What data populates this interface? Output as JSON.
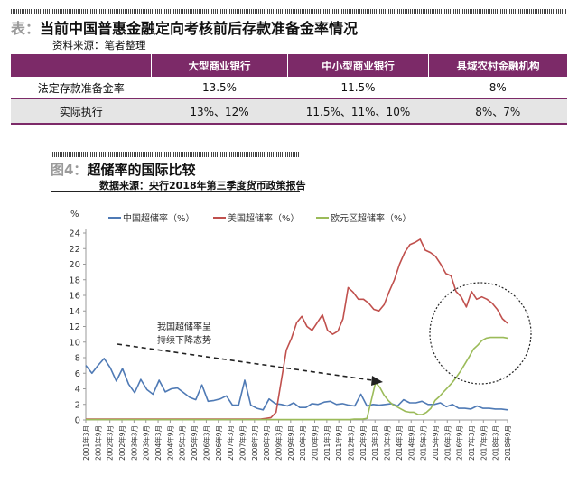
{
  "table": {
    "label": "表：",
    "title": "当前中国普惠金融定向考核前后存款准备金率情况",
    "source": "资料来源：笔者整理",
    "headers": [
      "",
      "大型商业银行",
      "中小型商业银行",
      "县域农村金融机构"
    ],
    "rows": [
      [
        "法定存款准备金率",
        "13.5%",
        "11.5%",
        "8%"
      ],
      [
        "实际执行",
        "13%、12%",
        "11.5%、11%、10%",
        "8%、7%"
      ]
    ],
    "header_color": "#7c2a68"
  },
  "figure": {
    "label": "图4：",
    "title": "超储率的国际比较",
    "source": "数据来源：央行2018年第三季度货币政策报告"
  },
  "chart_data": {
    "type": "line",
    "y_unit": "%",
    "ylim": [
      0,
      24
    ],
    "y_ticks": [
      0,
      2,
      4,
      6,
      8,
      10,
      12,
      14,
      16,
      18,
      20,
      22,
      24
    ],
    "x_ticks": [
      "2001年3月",
      "2001年9月",
      "2002年3月",
      "2002年9月",
      "2003年3月",
      "2003年9月",
      "2004年3月",
      "2004年9月",
      "2005年3月",
      "2005年9月",
      "2006年3月",
      "2006年9月",
      "2007年3月",
      "2007年9月",
      "2008年3月",
      "2008年9月",
      "2009年3月",
      "2009年9月",
      "2010年3月",
      "2010年9月",
      "2011年3月",
      "2011年9月",
      "2012年3月",
      "2012年9月",
      "2013年3月",
      "2013年9月",
      "2014年3月",
      "2014年9月",
      "2015年3月",
      "2015年9月",
      "2016年3月",
      "2016年9月",
      "2017年3月",
      "2017年9月",
      "2018年3月",
      "2018年9月"
    ],
    "grid": false,
    "legend_position": "top",
    "annotation": [
      "我国超储率呈",
      "持续下降态势"
    ],
    "series": [
      {
        "name": "中国超储率（%）",
        "color": "#4f7ab5",
        "values": [
          7.0,
          6.0,
          7.0,
          7.9,
          6.7,
          5.0,
          6.6,
          4.6,
          3.5,
          5.2,
          3.9,
          3.3,
          5.1,
          3.6,
          4.0,
          4.1,
          3.5,
          2.9,
          2.6,
          4.5,
          2.4,
          2.5,
          2.7,
          3.1,
          1.9,
          1.9,
          5.1,
          1.9,
          1.5,
          1.3,
          2.7,
          2.1,
          2.0,
          1.8,
          2.2,
          1.6,
          1.6,
          2.1,
          2.0,
          2.3,
          2.4,
          2.0,
          2.1,
          1.9,
          1.8,
          3.3,
          1.8,
          2.0,
          1.9,
          2.0,
          2.1,
          1.8,
          2.6,
          2.2,
          2.2,
          2.4,
          2.0,
          2.0,
          2.2,
          1.7,
          2.0,
          1.5,
          1.5,
          1.4,
          1.8,
          1.5,
          1.5,
          1.4,
          1.4,
          1.3
        ]
      },
      {
        "name": "美国超储率（%）",
        "color": "#c0504d",
        "values": [
          0.1,
          0.1,
          0.1,
          0.1,
          0.1,
          0.1,
          0.1,
          0.1,
          0.1,
          0.1,
          0.1,
          0.1,
          0.1,
          0.1,
          0.1,
          0.1,
          0.1,
          0.1,
          0.1,
          0.1,
          0.1,
          0.1,
          0.1,
          0.1,
          0.1,
          0.1,
          0.1,
          0.1,
          0.1,
          0.1,
          0.1,
          0.1,
          0.1,
          0.1,
          0.1,
          0.2,
          0.3,
          1.0,
          5.0,
          9.0,
          10.5,
          12.5,
          13.3,
          12.0,
          11.5,
          12.5,
          13.5,
          11.5,
          11.0,
          11.4,
          13.0,
          17.0,
          16.4,
          15.5,
          15.5,
          15.0,
          14.2,
          14.0,
          14.8,
          16.5,
          18.0,
          20.0,
          21.5,
          22.5,
          22.8,
          23.2,
          21.8,
          21.5,
          21.0,
          20.0,
          18.8,
          18.5,
          16.5,
          15.8,
          14.5,
          16.5,
          15.5,
          15.8,
          15.5,
          15.0,
          14.2,
          13.0,
          12.4
        ]
      },
      {
        "name": "欧元区超储率（%）",
        "color": "#9bbb59",
        "values": [
          0.05,
          0.05,
          0.05,
          0.05,
          0.05,
          0.05,
          0.05,
          0.05,
          0.05,
          0.05,
          0.05,
          0.05,
          0.05,
          0.05,
          0.05,
          0.05,
          0.05,
          0.05,
          0.05,
          0.05,
          0.05,
          0.05,
          0.05,
          0.05,
          0.05,
          0.05,
          0.05,
          0.05,
          0.05,
          0.05,
          0.05,
          0.05,
          0.05,
          0.05,
          0.05,
          0.05,
          0.05,
          0.05,
          0.05,
          0.05,
          0.05,
          0.05,
          0.05,
          0.05,
          0.05,
          0.05,
          0.05,
          0.05,
          0.05,
          0.05,
          0.05,
          0.05,
          0.05,
          0.05,
          0.05,
          0.05,
          0.05,
          0.05,
          0.05,
          0.05,
          0.05,
          0.05,
          0.05,
          0.1,
          0.1,
          0.1,
          0.2,
          2.5,
          4.8,
          4.2,
          3.2,
          2.5,
          2.0,
          1.7,
          1.4,
          1.1,
          1.0,
          1.0,
          0.7,
          0.7,
          1.0,
          1.5,
          2.5,
          3.0,
          3.6,
          4.2,
          4.8,
          5.5,
          6.3,
          7.2,
          8.1,
          9.1,
          9.6,
          10.2,
          10.5,
          10.6,
          10.6,
          10.6,
          10.6,
          10.5
        ]
      }
    ]
  }
}
